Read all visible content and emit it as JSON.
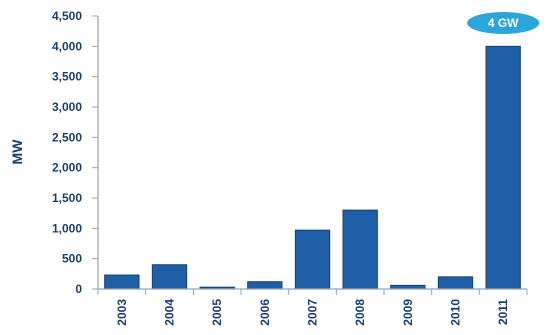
{
  "chart_data": {
    "type": "bar",
    "categories": [
      "2003",
      "2004",
      "2005",
      "2006",
      "2007",
      "2008",
      "2009",
      "2010",
      "2011"
    ],
    "values": [
      230,
      400,
      30,
      120,
      970,
      1300,
      60,
      200,
      4000
    ],
    "ylabel": "MW",
    "xlabel": "",
    "ylim": [
      0,
      4500
    ],
    "yticks": [
      0,
      500,
      1000,
      1500,
      2000,
      2500,
      3000,
      3500,
      4000,
      4500
    ],
    "ytick_labels": [
      "0",
      "500",
      "1,000",
      "1,500",
      "2,000",
      "2,500",
      "3,000",
      "3,500",
      "4,000",
      "4,500"
    ],
    "annotation": {
      "text": "4 GW",
      "category": "2011"
    },
    "colors": {
      "bar": "#1f5fa8",
      "bar_edge": "#163f73",
      "axis": "#9aa3ad",
      "callout": "#2aa6dd"
    },
    "grid": false
  }
}
